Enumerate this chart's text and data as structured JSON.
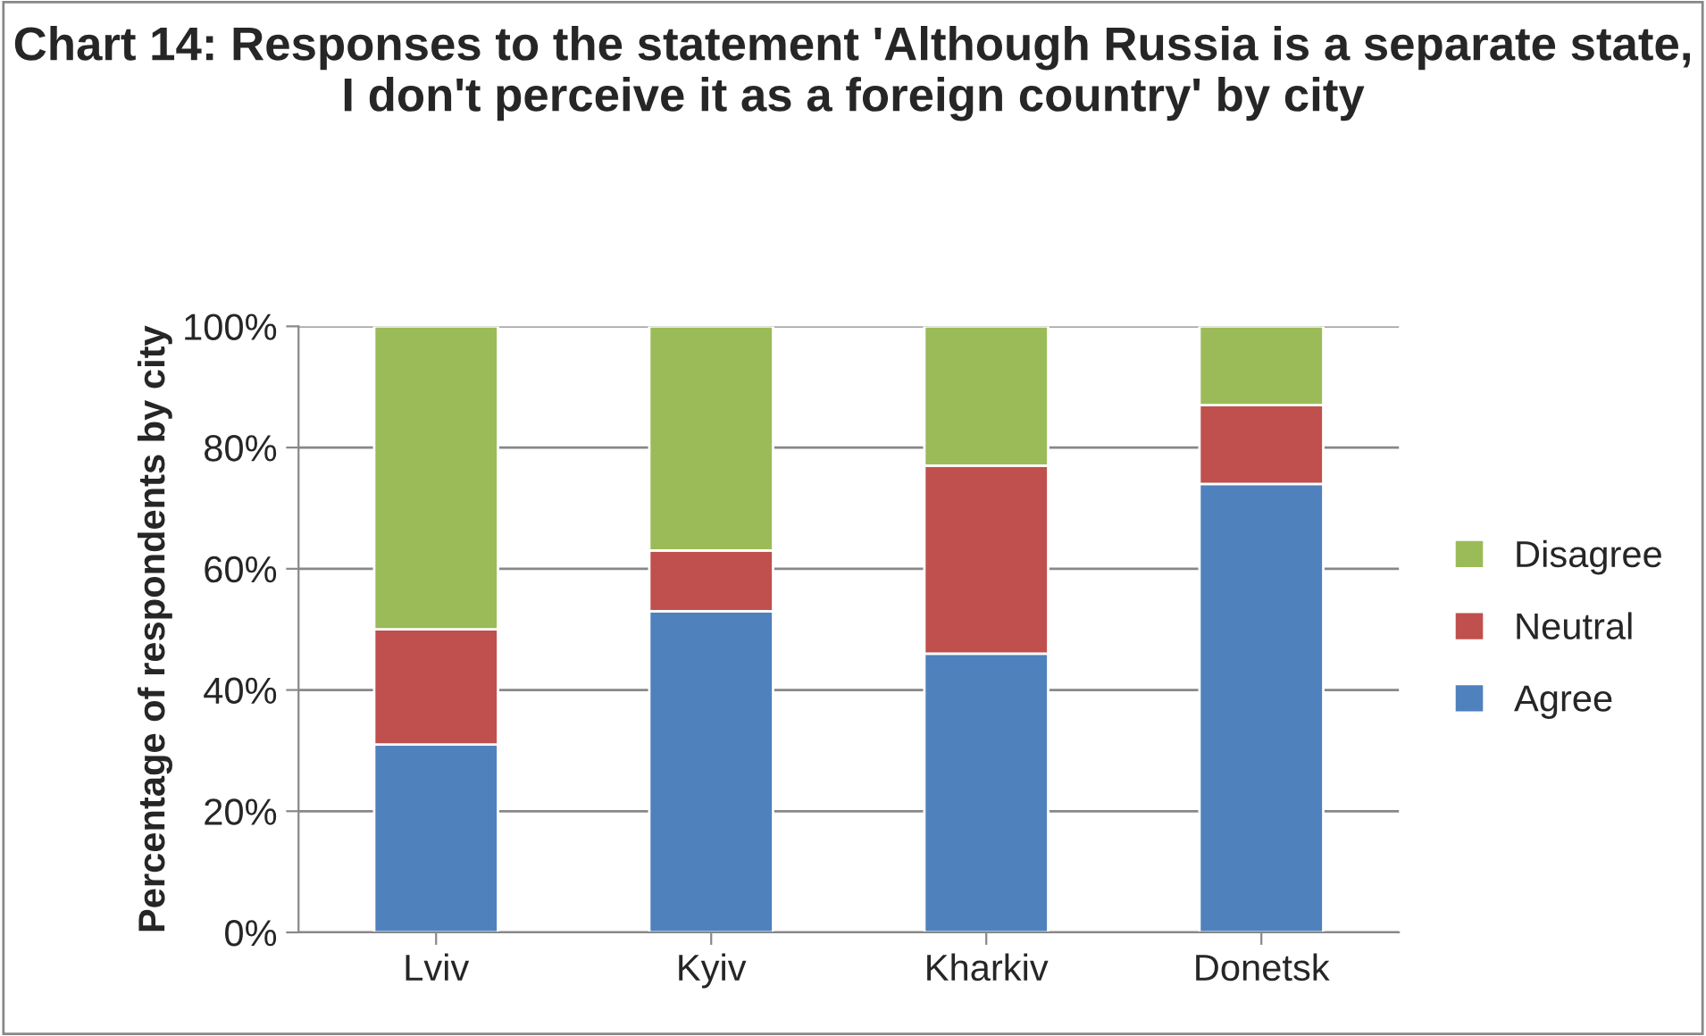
{
  "chart_data": {
    "type": "bar",
    "stacked": true,
    "title": "Chart 14: Responses to the statement 'Although Russia is a separate state, I don't perceive it as a foreign country' by city",
    "ylabel": "Percentage of respondents by city",
    "categories": [
      "Lviv",
      "Kyiv",
      "Kharkiv",
      "Donetsk"
    ],
    "series": [
      {
        "name": "Agree",
        "color": "#4f81bd",
        "values": [
          31,
          53,
          46,
          74
        ]
      },
      {
        "name": "Neutral",
        "color": "#c0504d",
        "values": [
          19,
          10,
          31,
          13
        ]
      },
      {
        "name": "Disagree",
        "color": "#9bbb59",
        "values": [
          50,
          37,
          23,
          13
        ]
      }
    ],
    "ylim": [
      0,
      100
    ],
    "yticks": [
      {
        "value": 0,
        "label": "0%"
      },
      {
        "value": 20,
        "label": "20%"
      },
      {
        "value": 40,
        "label": "40%"
      },
      {
        "value": 60,
        "label": "60%"
      },
      {
        "value": 80,
        "label": "80%"
      },
      {
        "value": 100,
        "label": "100%"
      }
    ],
    "grid": "y",
    "legend": "right"
  }
}
